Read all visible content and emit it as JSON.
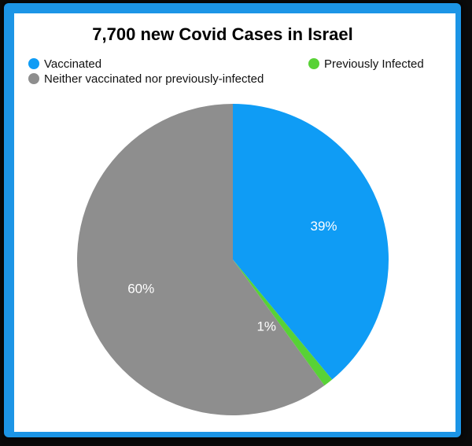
{
  "chart_data": {
    "type": "pie",
    "title": "7,700 new Covid Cases in Israel",
    "slices": [
      {
        "name": "Vaccinated",
        "value": 39,
        "label": "39%",
        "color": "#0f9cf5"
      },
      {
        "name": "Previously Infected",
        "value": 1,
        "label": "1%",
        "color": "#58d236"
      },
      {
        "name": "Neither vaccinated nor previously-infected",
        "value": 60,
        "label": "60%",
        "color": "#8e8e8e"
      }
    ],
    "start_angle_deg": 0,
    "direction": "clockwise",
    "legend_position": "top"
  }
}
